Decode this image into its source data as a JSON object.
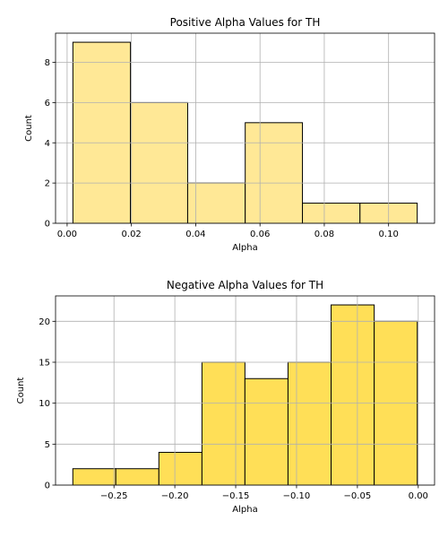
{
  "chart_data": [
    {
      "type": "bar",
      "title": "Positive Alpha Values for TH",
      "xlabel": "Alpha",
      "ylabel": "Count",
      "bin_edges": [
        0.0018,
        0.0197,
        0.0375,
        0.0554,
        0.0732,
        0.0911,
        0.1089
      ],
      "values": [
        9,
        6,
        2,
        5,
        1,
        1
      ],
      "xlim": [
        -0.0036,
        0.1143
      ],
      "ylim": [
        0,
        9.45
      ],
      "xticks": [
        0.0,
        0.02,
        0.04,
        0.06,
        0.08,
        0.1
      ],
      "xtick_labels": [
        "0.00",
        "0.02",
        "0.04",
        "0.06",
        "0.08",
        "0.10"
      ],
      "yticks": [
        0,
        2,
        4,
        6,
        8
      ],
      "ytick_labels": [
        "0",
        "2",
        "4",
        "6",
        "8"
      ],
      "bar_color": "#ffe896",
      "grid": true
    },
    {
      "type": "bar",
      "title": "Negative Alpha Values for TH",
      "xlabel": "Alpha",
      "ylabel": "Count",
      "bin_edges": [
        -0.2838,
        -0.2485,
        -0.2131,
        -0.1777,
        -0.1424,
        -0.107,
        -0.0716,
        -0.0362,
        -0.0008
      ],
      "values": [
        2,
        2,
        4,
        15,
        13,
        15,
        22,
        20
      ],
      "xlim": [
        -0.298,
        0.0134
      ],
      "ylim": [
        0,
        23.1
      ],
      "xticks": [
        -0.25,
        -0.2,
        -0.15,
        -0.1,
        -0.05,
        0.0
      ],
      "xtick_labels": [
        "−0.25",
        "−0.20",
        "−0.15",
        "−0.10",
        "−0.05",
        "0.00"
      ],
      "yticks": [
        0,
        5,
        10,
        15,
        20
      ],
      "ytick_labels": [
        "0",
        "5",
        "10",
        "15",
        "20"
      ],
      "bar_color": "#ffdf57",
      "grid": true
    }
  ]
}
